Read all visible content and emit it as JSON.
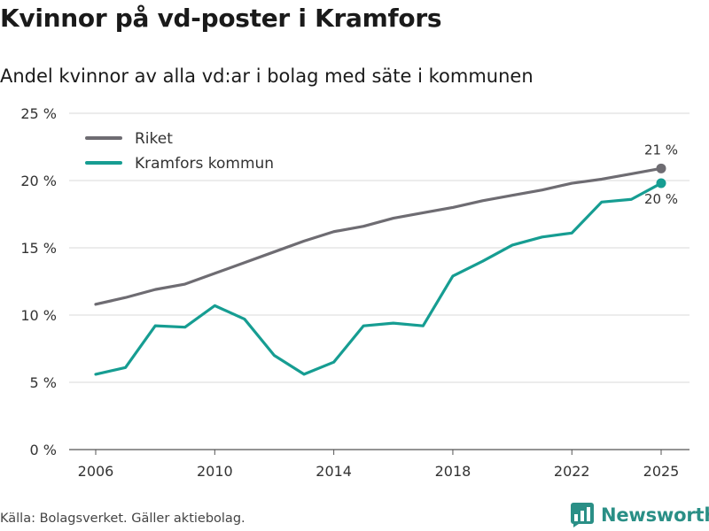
{
  "header": {
    "title": "Kvinnor på vd-poster i Kramfors",
    "subtitle": "Andel kvinnor av alla vd:ar i bolag med säte i kommunen"
  },
  "footer": {
    "source": "Källa: Bolagsverket. Gäller aktiebolag."
  },
  "brand": {
    "name": "Newsworthy",
    "icon": "bar-chart-logo-icon",
    "color": "#2a8f86"
  },
  "chart_data": {
    "type": "line",
    "title": "Kvinnor på vd-poster i Kramfors",
    "subtitle": "Andel kvinnor av alla vd:ar i bolag med säte i kommunen",
    "xlabel": "",
    "ylabel": "",
    "x": [
      2006,
      2007,
      2008,
      2009,
      2010,
      2011,
      2012,
      2013,
      2014,
      2015,
      2016,
      2017,
      2018,
      2019,
      2020,
      2021,
      2022,
      2023,
      2024,
      2025
    ],
    "xlim": [
      2006,
      2025
    ],
    "xticks": [
      2006,
      2010,
      2014,
      2018,
      2022,
      2025
    ],
    "xtick_labels": [
      "2006",
      "2010",
      "2014",
      "2018",
      "2022",
      "2025"
    ],
    "ylim": [
      0,
      25
    ],
    "yticks": [
      0,
      5,
      10,
      15,
      20,
      25
    ],
    "ytick_labels": [
      "0 %",
      "5 %",
      "10 %",
      "15 %",
      "20 %",
      "25 %"
    ],
    "grid": true,
    "legend_position": "top-left",
    "series": [
      {
        "name": "Riket",
        "color": "#6e6c72",
        "values": [
          10.8,
          11.3,
          11.9,
          12.3,
          13.1,
          13.9,
          14.7,
          15.5,
          16.2,
          16.6,
          17.2,
          17.6,
          18.0,
          18.5,
          18.9,
          19.3,
          19.8,
          20.1,
          20.5,
          20.9
        ],
        "end_label": "21 %"
      },
      {
        "name": "Kramfors kommun",
        "color": "#169d92",
        "values": [
          5.6,
          6.1,
          9.2,
          9.1,
          10.7,
          9.7,
          7.0,
          5.6,
          6.5,
          9.2,
          9.4,
          9.2,
          12.9,
          14.0,
          15.2,
          15.8,
          16.1,
          18.4,
          18.6,
          19.8
        ],
        "end_label": "20 %"
      }
    ]
  }
}
